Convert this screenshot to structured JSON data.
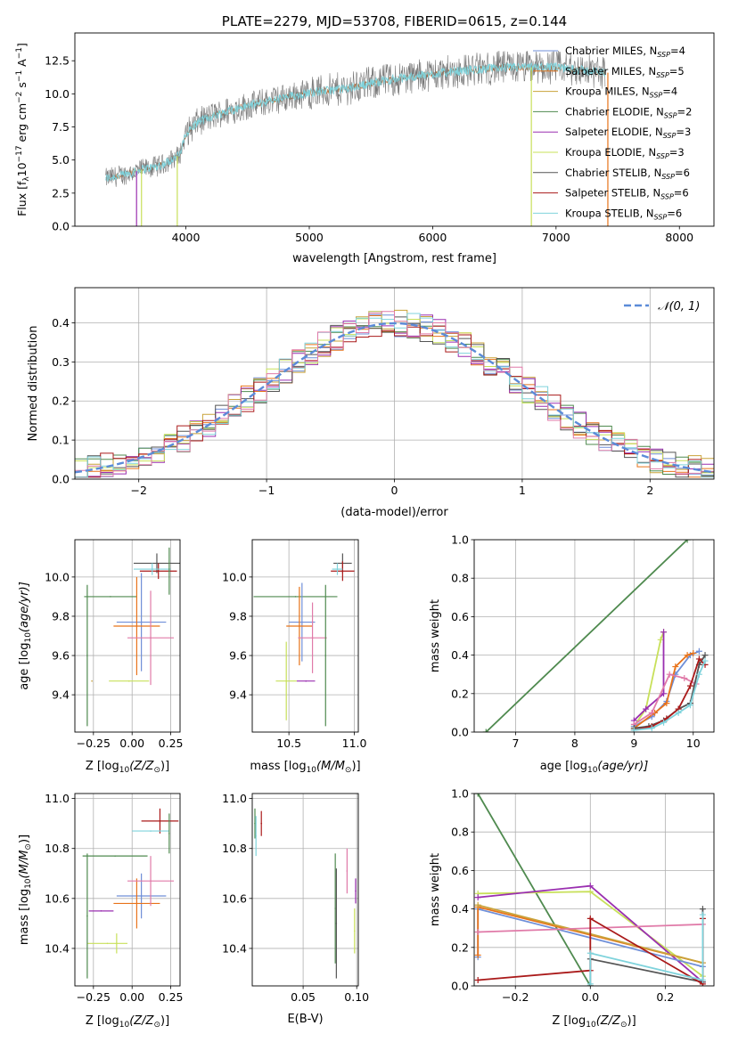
{
  "colors": {
    "chab_miles": "#6f8fd8",
    "salp_miles": "#e8731a",
    "krou_miles": "#c9a33a",
    "chab_elodie": "#4f8a4f",
    "salp_elodie": "#9a2fb0",
    "krou_elodie": "#c8e05a",
    "chab_stelib": "#555555",
    "salp_stelib": "#aa1a1a",
    "krou_stelib": "#7fd3dc",
    "pink": "#e07aa8",
    "gauss": "#5b8bd8"
  },
  "chart_data": [
    {
      "id": "spectrum",
      "type": "line",
      "title": "PLATE=2279, MJD=53708, FIBERID=0615, z=0.144",
      "xlabel": "wavelength [Angstrom, rest frame]",
      "ylabel_main": "Flux [f",
      "ylabel_sub": "λ",
      "ylabel_mid": "10",
      "ylabel_exp": "−17",
      "ylabel_rest": " erg cm",
      "ylabel_rest_exp": "−2",
      "ylabel_rest2": " s",
      "ylabel_rest2_exp": "−1",
      "ylabel_rest3": " A",
      "ylabel_rest3_exp": "−1",
      "ylabel_end": "]",
      "xlim": [
        3100,
        8280
      ],
      "ylim": [
        0,
        14.6
      ],
      "xticks": [
        4000,
        5000,
        6000,
        7000,
        8000
      ],
      "yticks": [
        0.0,
        2.5,
        5.0,
        7.5,
        10.0,
        12.5
      ],
      "ytick_labels": [
        "0.0",
        "2.5",
        "5.0",
        "7.5",
        "10.0",
        "12.5"
      ],
      "legend": [
        {
          "name": "Chabrier MILES, N",
          "sub": "SSP",
          "eq": "=4",
          "color_key": "chab_miles"
        },
        {
          "name": "Salpeter MILES, N",
          "sub": "SSP",
          "eq": "=5",
          "color_key": "salp_miles"
        },
        {
          "name": "Kroupa MILES, N",
          "sub": "SSP",
          "eq": "=4",
          "color_key": "krou_miles"
        },
        {
          "name": "Chabrier ELODIE, N",
          "sub": "SSP",
          "eq": "=2",
          "color_key": "chab_elodie"
        },
        {
          "name": "Salpeter ELODIE, N",
          "sub": "SSP",
          "eq": "=3",
          "color_key": "salp_elodie"
        },
        {
          "name": "Kroupa ELODIE, N",
          "sub": "SSP",
          "eq": "=3",
          "color_key": "krou_elodie"
        },
        {
          "name": "Chabrier STELIB, N",
          "sub": "SSP",
          "eq": "=6",
          "color_key": "chab_stelib"
        },
        {
          "name": "Salpeter STELIB, N",
          "sub": "SSP",
          "eq": "=6",
          "color_key": "salp_stelib"
        },
        {
          "name": "Kroupa STELIB, N",
          "sub": "SSP",
          "eq": "=6",
          "color_key": "krou_stelib"
        }
      ],
      "continuum_anchors": [
        [
          3350,
          3.6
        ],
        [
          3500,
          3.9
        ],
        [
          3650,
          4.3
        ],
        [
          3800,
          4.6
        ],
        [
          3950,
          5.4
        ],
        [
          4000,
          7.0
        ],
        [
          4100,
          7.9
        ],
        [
          4300,
          8.6
        ],
        [
          4500,
          9.1
        ],
        [
          4800,
          9.7
        ],
        [
          5000,
          10.1
        ],
        [
          5300,
          10.4
        ],
        [
          5600,
          11.0
        ],
        [
          6000,
          11.5
        ],
        [
          6300,
          11.8
        ],
        [
          6600,
          12.0
        ],
        [
          6800,
          12.0
        ],
        [
          7000,
          12.0
        ],
        [
          7400,
          11.6
        ]
      ],
      "vertical_drops": [
        [
          3600,
          "salp_elodie"
        ],
        [
          3640,
          "krou_elodie"
        ],
        [
          3930,
          "krou_elodie"
        ],
        [
          6800,
          "krou_elodie"
        ],
        [
          7420,
          "salp_miles"
        ]
      ]
    },
    {
      "id": "residuals",
      "type": "histogram",
      "xlabel": "(data-model)/error",
      "ylabel": "Normed distribution",
      "xlim": [
        -2.5,
        2.5
      ],
      "ylim": [
        0,
        0.49
      ],
      "xticks": [
        -2,
        -1,
        0,
        1,
        2
      ],
      "xtick_labels": [
        "−2",
        "−1",
        "0",
        "1",
        "2"
      ],
      "yticks": [
        0.0,
        0.1,
        0.2,
        0.3,
        0.4
      ],
      "ytick_labels": [
        "0.0",
        "0.1",
        "0.2",
        "0.3",
        "0.4"
      ],
      "bin_width": 0.1,
      "legend_label": "𝒩(0, 1)",
      "gauss": {
        "mu": 0,
        "sigma": 1
      }
    },
    {
      "id": "age_vs_Z",
      "type": "errorbar",
      "xlabel": "Z [log",
      "xlabel_sub": "10",
      "xlabel_rest": "(Z/Z",
      "xlabel_sun": "⊙",
      "xlabel_end": ")]",
      "ylabel": "age  [log",
      "ylabel_sub": "10",
      "ylabel_rest": "(age/yr)]",
      "xlim": [
        -0.37,
        0.31
      ],
      "ylim": [
        9.21,
        10.19
      ],
      "xticks": [
        -0.25,
        0.0,
        0.25
      ],
      "xtick_labels": [
        "−0.25",
        "0.00",
        "0.25"
      ],
      "extra_xticks": [
        -0.25,
        0.0,
        0.25
      ],
      "yticks": [
        9.4,
        9.6,
        9.8,
        10.0
      ],
      "ytick_labels": [
        "9.4",
        "9.6",
        "9.8",
        "10.0"
      ],
      "points": [
        {
          "x": -0.02,
          "y": 9.47,
          "xerr": 0.13,
          "yerr": 0.0,
          "color_key": "krou_elodie"
        },
        {
          "x": -0.26,
          "y": 9.47,
          "xerr": 0.0,
          "yerr": 0.0,
          "color_key": "krou_miles"
        },
        {
          "x": -0.29,
          "y": 9.6,
          "xerr": 0.0,
          "yerr": 0.36,
          "color_key": "chab_elodie"
        },
        {
          "x": -0.14,
          "y": 9.9,
          "xerr": 0.17,
          "yerr": 0.0,
          "color_key": "chab_elodie"
        },
        {
          "x": 0.06,
          "y": 9.77,
          "xerr": 0.16,
          "yerr": 0.25,
          "color_key": "chab_miles"
        },
        {
          "x": 0.03,
          "y": 9.75,
          "xerr": 0.15,
          "yerr": 0.25,
          "color_key": "salp_miles"
        },
        {
          "x": 0.12,
          "y": 9.69,
          "xerr": 0.15,
          "yerr": 0.24,
          "color_key": "pink"
        },
        {
          "x": 0.16,
          "y": 10.07,
          "xerr": 0.15,
          "yerr": 0.05,
          "color_key": "chab_stelib"
        },
        {
          "x": 0.17,
          "y": 10.03,
          "xerr": 0.12,
          "yerr": 0.04,
          "color_key": "salp_stelib"
        },
        {
          "x": 0.13,
          "y": 10.04,
          "xerr": 0.12,
          "yerr": 0.03,
          "color_key": "krou_stelib"
        },
        {
          "x": 0.24,
          "y": 10.03,
          "xerr": 0.0,
          "yerr": 0.12,
          "color_key": "chab_elodie"
        }
      ]
    },
    {
      "id": "age_vs_mass",
      "type": "errorbar",
      "xlabel": "mass [log",
      "xlabel_sub": "10",
      "xlabel_rest": "(M/M",
      "xlabel_sun": "⊙",
      "xlabel_end": ")]",
      "xlim": [
        10.22,
        11.03
      ],
      "ylim": [
        9.21,
        10.19
      ],
      "xticks": [
        10.5,
        11.0
      ],
      "xtick_labels": [
        "10.5",
        "11.0"
      ],
      "yticks": [
        9.4,
        9.6,
        9.8,
        10.0
      ],
      "ytick_labels": [
        "9.4",
        "9.6",
        "9.8",
        "10.0"
      ],
      "points": [
        {
          "x": 10.48,
          "y": 9.47,
          "xerr": 0.08,
          "yerr": 0.2,
          "color_key": "krou_elodie"
        },
        {
          "x": 10.55,
          "y": 9.9,
          "xerr": 0.32,
          "yerr": 0.0,
          "color_key": "chab_elodie"
        },
        {
          "x": 10.6,
          "y": 9.77,
          "xerr": 0.1,
          "yerr": 0.2,
          "color_key": "chab_miles"
        },
        {
          "x": 10.58,
          "y": 9.75,
          "xerr": 0.1,
          "yerr": 0.2,
          "color_key": "salp_miles"
        },
        {
          "x": 10.68,
          "y": 9.69,
          "xerr": 0.11,
          "yerr": 0.18,
          "color_key": "pink"
        },
        {
          "x": 10.63,
          "y": 9.47,
          "xerr": 0.07,
          "yerr": 0.0,
          "color_key": "salp_elodie"
        },
        {
          "x": 10.78,
          "y": 9.6,
          "xerr": 0.0,
          "yerr": 0.36,
          "color_key": "chab_elodie"
        },
        {
          "x": 10.91,
          "y": 10.07,
          "xerr": 0.07,
          "yerr": 0.05,
          "color_key": "chab_stelib"
        },
        {
          "x": 10.91,
          "y": 10.03,
          "xerr": 0.09,
          "yerr": 0.05,
          "color_key": "salp_stelib"
        },
        {
          "x": 10.87,
          "y": 10.04,
          "xerr": 0.04,
          "yerr": 0.03,
          "color_key": "krou_stelib"
        }
      ]
    },
    {
      "id": "massweight_vs_age",
      "type": "line",
      "xlabel": "age  [log",
      "xlabel_sub": "10",
      "xlabel_rest": "(age/yr)]",
      "ylabel": "mass weight",
      "xlim": [
        6.3,
        10.35
      ],
      "ylim": [
        0,
        1.0
      ],
      "xticks": [
        7,
        8,
        9,
        10
      ],
      "xtick_labels": [
        "7",
        "8",
        "9",
        "10"
      ],
      "yticks": [
        0.0,
        0.2,
        0.4,
        0.6,
        0.8,
        1.0
      ],
      "ytick_labels": [
        "0.0",
        "0.2",
        "0.4",
        "0.6",
        "0.8",
        "1.0"
      ],
      "series": [
        {
          "color_key": "chab_elodie",
          "x": [
            6.5,
            9.9
          ],
          "y": [
            0.0,
            1.0
          ]
        },
        {
          "color_key": "krou_elodie",
          "x": [
            9.0,
            9.2,
            9.45,
            9.5
          ],
          "y": [
            0.03,
            0.12,
            0.48,
            0.52
          ]
        },
        {
          "color_key": "salp_elodie",
          "x": [
            9.0,
            9.2,
            9.5,
            9.5
          ],
          "y": [
            0.06,
            0.12,
            0.2,
            0.52
          ]
        },
        {
          "color_key": "chab_miles",
          "x": [
            9.0,
            9.3,
            9.55,
            9.7,
            9.95,
            10.1
          ],
          "y": [
            0.03,
            0.08,
            0.16,
            0.3,
            0.4,
            0.42
          ]
        },
        {
          "color_key": "salp_miles",
          "x": [
            9.0,
            9.35,
            9.55,
            9.7,
            9.9,
            10.0
          ],
          "y": [
            0.02,
            0.1,
            0.15,
            0.34,
            0.4,
            0.41
          ]
        },
        {
          "color_key": "pink",
          "x": [
            9.0,
            9.3,
            9.6,
            9.85,
            10.05
          ],
          "y": [
            0.04,
            0.1,
            0.3,
            0.28,
            0.25
          ]
        },
        {
          "color_key": "chab_stelib",
          "x": [
            9.0,
            9.25,
            9.5,
            9.75,
            9.95,
            10.1,
            10.2
          ],
          "y": [
            0.02,
            0.03,
            0.06,
            0.12,
            0.15,
            0.35,
            0.4
          ]
        },
        {
          "color_key": "salp_stelib",
          "x": [
            9.0,
            9.3,
            9.55,
            9.75,
            9.95,
            10.1,
            10.2
          ],
          "y": [
            0.01,
            0.03,
            0.07,
            0.12,
            0.24,
            0.38,
            0.35
          ]
        },
        {
          "color_key": "krou_stelib",
          "x": [
            9.0,
            9.3,
            9.5,
            9.75,
            9.95,
            10.1,
            10.2
          ],
          "y": [
            0.01,
            0.02,
            0.05,
            0.1,
            0.14,
            0.3,
            0.37
          ]
        }
      ]
    },
    {
      "id": "mass_vs_Z",
      "type": "errorbar",
      "xlabel": "Z [log",
      "xlabel_sub": "10",
      "xlabel_rest": "(Z/Z",
      "xlabel_sun": "⊙",
      "xlabel_end": ")]",
      "ylabel": "mass [log",
      "ylabel_sub": "10",
      "ylabel_rest": "(M/M",
      "ylabel_sun": "⊙",
      "ylabel_end": ")]",
      "xlim": [
        -0.37,
        0.31
      ],
      "ylim": [
        10.25,
        11.02
      ],
      "xticks": [
        -0.25,
        0.0,
        0.25
      ],
      "xtick_labels": [
        "−0.25",
        "0.00",
        "0.25"
      ],
      "yticks": [
        10.4,
        10.6,
        10.8,
        11.0
      ],
      "ytick_labels": [
        "10.4",
        "10.6",
        "10.8",
        "11.0"
      ],
      "points": [
        {
          "x": -0.16,
          "y": 10.42,
          "xerr": 0.13,
          "yerr": 0.0,
          "color_key": "krou_elodie"
        },
        {
          "x": -0.1,
          "y": 10.42,
          "xerr": 0.0,
          "yerr": 0.04,
          "color_key": "krou_elodie"
        },
        {
          "x": -0.29,
          "y": 10.53,
          "xerr": 0.0,
          "yerr": 0.25,
          "color_key": "chab_elodie"
        },
        {
          "x": -0.11,
          "y": 10.77,
          "xerr": 0.21,
          "yerr": 0.0,
          "color_key": "chab_elodie"
        },
        {
          "x": -0.2,
          "y": 10.55,
          "xerr": 0.08,
          "yerr": 0.0,
          "color_key": "salp_elodie"
        },
        {
          "x": 0.06,
          "y": 10.61,
          "xerr": 0.16,
          "yerr": 0.09,
          "color_key": "chab_miles"
        },
        {
          "x": 0.03,
          "y": 10.58,
          "xerr": 0.15,
          "yerr": 0.1,
          "color_key": "salp_miles"
        },
        {
          "x": 0.12,
          "y": 10.67,
          "xerr": 0.15,
          "yerr": 0.1,
          "color_key": "pink"
        },
        {
          "x": 0.18,
          "y": 10.91,
          "xerr": 0.12,
          "yerr": 0.05,
          "color_key": "salp_stelib"
        },
        {
          "x": 0.12,
          "y": 10.87,
          "xerr": 0.12,
          "yerr": 0.0,
          "color_key": "krou_stelib"
        },
        {
          "x": 0.24,
          "y": 10.86,
          "xerr": 0.0,
          "yerr": 0.08,
          "color_key": "chab_elodie"
        }
      ]
    },
    {
      "id": "mass_vs_EBV",
      "type": "errorbar",
      "xlabel": "E(B-V)",
      "xlim": [
        0.0025,
        0.1015
      ],
      "ylim": [
        10.25,
        11.02
      ],
      "xticks": [
        0.05,
        0.1
      ],
      "xtick_labels": [
        "0.05",
        "0.10"
      ],
      "yticks": [
        10.4,
        10.6,
        10.8,
        11.0
      ],
      "ytick_labels": [
        "10.4",
        "10.6",
        "10.8",
        "11.0"
      ],
      "points": [
        {
          "x": 0.005,
          "y": 10.9,
          "xerr": 0.0,
          "yerr": 0.06,
          "color_key": "chab_elodie"
        },
        {
          "x": 0.006,
          "y": 10.85,
          "xerr": 0.0,
          "yerr": 0.08,
          "color_key": "krou_stelib"
        },
        {
          "x": 0.011,
          "y": 10.9,
          "xerr": 0.0,
          "yerr": 0.05,
          "color_key": "salp_stelib"
        },
        {
          "x": 0.08,
          "y": 10.56,
          "xerr": 0.0,
          "yerr": 0.22,
          "color_key": "chab_elodie"
        },
        {
          "x": 0.081,
          "y": 10.5,
          "xerr": 0.0,
          "yerr": 0.22,
          "color_key": "chab_stelib"
        },
        {
          "x": 0.091,
          "y": 10.71,
          "xerr": 0.0,
          "yerr": 0.09,
          "color_key": "pink"
        },
        {
          "x": 0.098,
          "y": 10.47,
          "xerr": 0.0,
          "yerr": 0.09,
          "color_key": "krou_elodie"
        },
        {
          "x": 0.099,
          "y": 10.63,
          "xerr": 0.0,
          "yerr": 0.05,
          "color_key": "salp_elodie"
        }
      ]
    },
    {
      "id": "massweight_vs_Z",
      "type": "line",
      "xlabel": "Z [log",
      "xlabel_sub": "10",
      "xlabel_rest": "(Z/Z",
      "xlabel_sun": "⊙",
      "xlabel_end": ")]",
      "ylabel": "mass weight",
      "xlim": [
        -0.31,
        0.33
      ],
      "ylim": [
        0,
        1.0
      ],
      "xticks": [
        -0.2,
        0.0,
        0.2
      ],
      "xtick_labels": [
        "−0.2",
        "0.0",
        "0.2"
      ],
      "yticks": [
        0.0,
        0.2,
        0.4,
        0.6,
        0.8,
        1.0
      ],
      "ytick_labels": [
        "0.0",
        "0.2",
        "0.4",
        "0.6",
        "0.8",
        "1.0"
      ],
      "series": [
        {
          "color_key": "chab_elodie",
          "x": [
            -0.3,
            0.0
          ],
          "y": [
            1.0,
            0.0
          ]
        },
        {
          "color_key": "krou_elodie",
          "x": [
            -0.3,
            0.0,
            0.3
          ],
          "y": [
            0.48,
            0.49,
            0.05
          ]
        },
        {
          "color_key": "salp_elodie",
          "x": [
            -0.3,
            0.0,
            0.3
          ],
          "y": [
            0.46,
            0.52,
            0.02
          ]
        },
        {
          "color_key": "chab_miles",
          "x": [
            -0.3,
            -0.3,
            0.3
          ],
          "y": [
            0.15,
            0.4,
            0.1
          ]
        },
        {
          "color_key": "salp_miles",
          "x": [
            -0.3,
            -0.3,
            0.3
          ],
          "y": [
            0.16,
            0.41,
            0.12
          ]
        },
        {
          "color_key": "krou_miles",
          "x": [
            -0.3,
            0.3
          ],
          "y": [
            0.42,
            0.12
          ]
        },
        {
          "color_key": "pink",
          "x": [
            -0.3,
            0.3
          ],
          "y": [
            0.28,
            0.32
          ]
        },
        {
          "color_key": "chab_stelib",
          "x": [
            0.0,
            0.0,
            0.3,
            0.3
          ],
          "y": [
            0.0,
            0.14,
            0.02,
            0.4
          ]
        },
        {
          "color_key": "salp_stelib",
          "x": [
            -0.3,
            0.0,
            0.0,
            0.3,
            0.3
          ],
          "y": [
            0.03,
            0.08,
            0.35,
            0.01,
            0.35
          ]
        },
        {
          "color_key": "krou_stelib",
          "x": [
            0.0,
            0.0,
            0.3,
            0.3
          ],
          "y": [
            0.01,
            0.17,
            0.03,
            0.37
          ]
        }
      ]
    }
  ]
}
